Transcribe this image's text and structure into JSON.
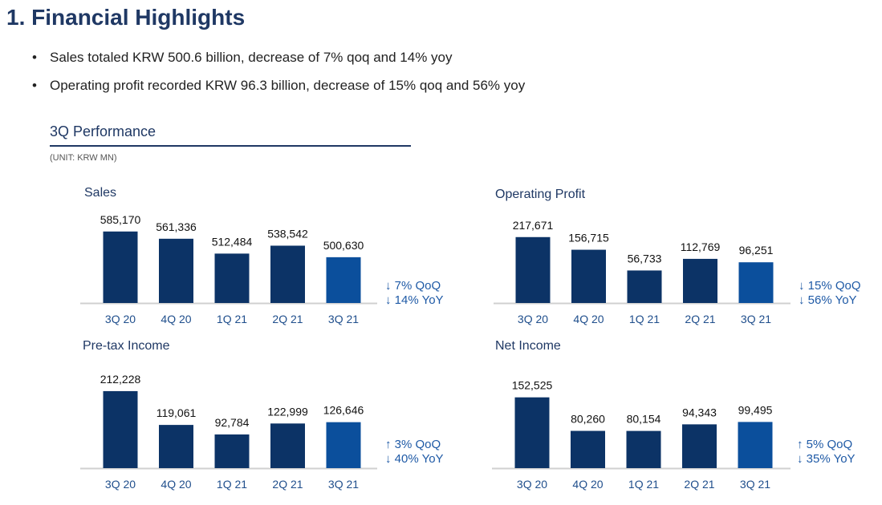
{
  "title": "1. Financial Highlights",
  "bullets": [
    "Sales totaled KRW 500.6 billion, decrease of 7% qoq and 14% yoy",
    "Operating profit recorded KRW 96.3 billion, decrease of 15% qoq and 56% yoy"
  ],
  "section": {
    "title": "3Q Performance",
    "unit": "(UNIT: KRW MN)"
  },
  "colors": {
    "bar": "#0c3366",
    "highlight_bar": "#0b4f9c",
    "axis": "#d0d0d0",
    "title": "#1f3864",
    "change_text": "#1f5aa6"
  },
  "chart_data": [
    {
      "type": "bar",
      "title": "Sales",
      "categories": [
        "3Q 20",
        "4Q 20",
        "1Q 21",
        "2Q 21",
        "3Q 21"
      ],
      "values": [
        585170,
        561336,
        512484,
        538542,
        500630
      ],
      "value_labels": [
        "585,170",
        "561,336",
        "512,484",
        "538,542",
        "500,630"
      ],
      "ylim": [
        350000,
        640000
      ],
      "grid": false,
      "change": [
        "↓ 7% QoQ",
        "↓ 14% YoY"
      ]
    },
    {
      "type": "bar",
      "title": "Operating Profit",
      "categories": [
        "3Q 20",
        "4Q 20",
        "1Q 21",
        "2Q 21",
        "3Q 21"
      ],
      "values": [
        217671,
        156715,
        56733,
        112769,
        96251
      ],
      "value_labels": [
        "217,671",
        "156,715",
        "56,733",
        "112,769",
        "96,251"
      ],
      "ylim": [
        -100000,
        325000
      ],
      "grid": false,
      "change": [
        "↓ 15% QoQ",
        "↓ 56% YoY"
      ]
    },
    {
      "type": "bar",
      "title": "Pre-tax Income",
      "categories": [
        "3Q 20",
        "4Q 20",
        "1Q 21",
        "2Q 21",
        "3Q 21"
      ],
      "values": [
        212228,
        119061,
        92784,
        122999,
        126646
      ],
      "value_labels": [
        "212,228",
        "119,061",
        "92,784",
        "122,999",
        "126,646"
      ],
      "ylim": [
        0,
        243000
      ],
      "grid": false,
      "change": [
        "↑ 3% QoQ",
        "↓ 40% YoY"
      ]
    },
    {
      "type": "bar",
      "title": "Net Income",
      "categories": [
        "3Q 20",
        "4Q 20",
        "1Q 21",
        "2Q 21",
        "3Q 21"
      ],
      "values": [
        152525,
        80260,
        80154,
        94343,
        99495
      ],
      "value_labels": [
        "152,525",
        "80,260",
        "80,154",
        "94,343",
        "99,495"
      ],
      "ylim": [
        0,
        190000
      ],
      "grid": false,
      "change": [
        "↑ 5% QoQ",
        "↓ 35% YoY"
      ]
    }
  ]
}
